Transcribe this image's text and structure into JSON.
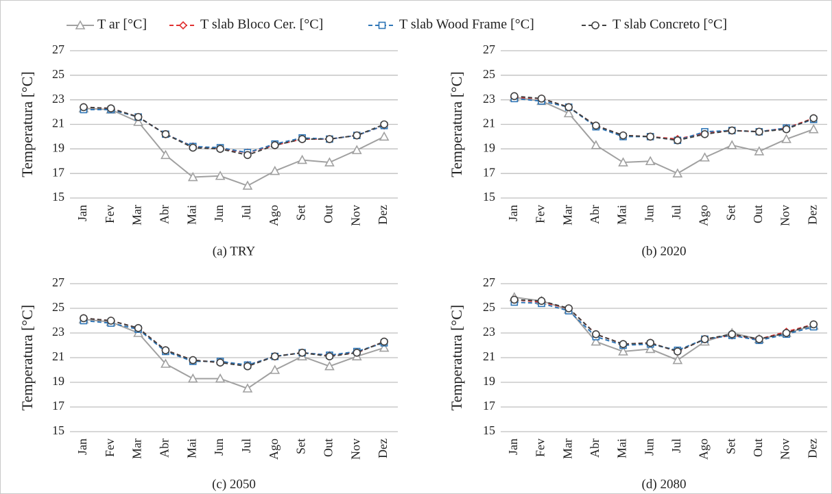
{
  "legend": [
    {
      "name": "T ar [°C]",
      "color": "#a0a0a0",
      "marker": "triangle",
      "dashed": false
    },
    {
      "name": "T slab Bloco Cer. [°C]",
      "color": "#e03030",
      "marker": "diamond",
      "dashed": true
    },
    {
      "name": "T slab Wood Frame [°C]",
      "color": "#2e75b6",
      "marker": "square",
      "dashed": true
    },
    {
      "name": "T slab Concreto [°C]",
      "color": "#404040",
      "marker": "circle",
      "dashed": true
    }
  ],
  "chart_data": [
    {
      "type": "line",
      "subtitle": "(a) TRY",
      "y_label": "Temperatura [°C]",
      "categories": [
        "Jan",
        "Fev",
        "Mar",
        "Abr",
        "Mai",
        "Jun",
        "Jul",
        "Ago",
        "Set",
        "Out",
        "Nov",
        "Dez"
      ],
      "ylim": [
        15,
        27
      ],
      "yticks": [
        15,
        17,
        19,
        21,
        23,
        25,
        27
      ],
      "grid": true,
      "series": [
        {
          "values": [
            22.3,
            22.2,
            21.2,
            18.5,
            16.7,
            16.8,
            16.0,
            17.2,
            18.1,
            17.9,
            18.9,
            20.0
          ]
        },
        {
          "values": [
            22.4,
            22.3,
            21.6,
            20.2,
            19.2,
            19.0,
            18.7,
            19.3,
            19.8,
            19.8,
            20.1,
            20.9
          ]
        },
        {
          "values": [
            22.2,
            22.2,
            21.6,
            20.2,
            19.2,
            19.1,
            18.7,
            19.4,
            19.9,
            19.8,
            20.1,
            20.9
          ]
        },
        {
          "values": [
            22.4,
            22.3,
            21.6,
            20.2,
            19.1,
            19.0,
            18.5,
            19.3,
            19.8,
            19.8,
            20.1,
            21.0
          ]
        }
      ]
    },
    {
      "type": "line",
      "subtitle": "(b) 2020",
      "y_label": "Temperatura [°C]",
      "categories": [
        "Jan",
        "Fev",
        "Mar",
        "Abr",
        "Mai",
        "Jun",
        "Jul",
        "Ago",
        "Set",
        "Out",
        "Nov",
        "Dez"
      ],
      "ylim": [
        15,
        27
      ],
      "yticks": [
        15,
        17,
        19,
        21,
        23,
        25,
        27
      ],
      "grid": true,
      "series": [
        {
          "values": [
            23.2,
            22.9,
            21.9,
            19.3,
            17.9,
            18.0,
            17.0,
            18.3,
            19.3,
            18.8,
            19.8,
            20.6
          ]
        },
        {
          "values": [
            23.2,
            23.1,
            22.4,
            20.9,
            20.1,
            20.0,
            19.8,
            20.3,
            20.5,
            20.4,
            20.7,
            21.5
          ]
        },
        {
          "values": [
            23.1,
            22.9,
            22.4,
            20.8,
            20.0,
            20.0,
            19.7,
            20.4,
            20.5,
            20.4,
            20.7,
            21.4
          ]
        },
        {
          "values": [
            23.3,
            23.1,
            22.4,
            20.9,
            20.1,
            20.0,
            19.7,
            20.2,
            20.5,
            20.4,
            20.6,
            21.5
          ]
        }
      ]
    },
    {
      "type": "line",
      "subtitle": "(c) 2050",
      "y_label": "Temperatura [°C]",
      "categories": [
        "Jan",
        "Fev",
        "Mar",
        "Abr",
        "Mai",
        "Jun",
        "Jul",
        "Ago",
        "Set",
        "Out",
        "Nov",
        "Dez"
      ],
      "ylim": [
        15,
        27
      ],
      "yticks": [
        15,
        17,
        19,
        21,
        23,
        25,
        27
      ],
      "grid": true,
      "series": [
        {
          "values": [
            24.1,
            23.9,
            23.0,
            20.5,
            19.3,
            19.3,
            18.5,
            20.0,
            21.1,
            20.3,
            21.1,
            21.8
          ]
        },
        {
          "values": [
            24.2,
            24.0,
            23.4,
            21.6,
            20.8,
            20.6,
            20.4,
            21.1,
            21.4,
            21.2,
            21.4,
            22.3
          ]
        },
        {
          "values": [
            24.0,
            23.8,
            23.3,
            21.5,
            20.7,
            20.7,
            20.4,
            21.1,
            21.4,
            21.2,
            21.5,
            22.2
          ]
        },
        {
          "values": [
            24.2,
            24.0,
            23.4,
            21.6,
            20.8,
            20.6,
            20.3,
            21.1,
            21.4,
            21.1,
            21.4,
            22.3
          ]
        }
      ]
    },
    {
      "type": "line",
      "subtitle": "(d) 2080",
      "y_label": "Temperatura [°C]",
      "categories": [
        "Jan",
        "Fev",
        "Mar",
        "Abr",
        "Mai",
        "Jun",
        "Jul",
        "Ago",
        "Set",
        "Out",
        "Nov",
        "Dez"
      ],
      "ylim": [
        15,
        27
      ],
      "yticks": [
        15,
        17,
        19,
        21,
        23,
        25,
        27
      ],
      "grid": true,
      "series": [
        {
          "values": [
            25.9,
            25.6,
            24.9,
            22.3,
            21.5,
            21.7,
            20.8,
            22.3,
            23.0,
            22.5,
            23.0,
            23.6
          ]
        },
        {
          "values": [
            25.7,
            25.5,
            25.0,
            22.9,
            22.1,
            22.2,
            21.5,
            22.5,
            22.8,
            22.5,
            23.1,
            23.7
          ]
        },
        {
          "values": [
            25.5,
            25.4,
            24.8,
            22.7,
            22.0,
            22.1,
            21.6,
            22.5,
            22.8,
            22.4,
            22.9,
            23.5
          ]
        },
        {
          "values": [
            25.7,
            25.6,
            25.0,
            22.9,
            22.1,
            22.2,
            21.5,
            22.5,
            22.9,
            22.5,
            23.0,
            23.7
          ]
        }
      ]
    }
  ]
}
